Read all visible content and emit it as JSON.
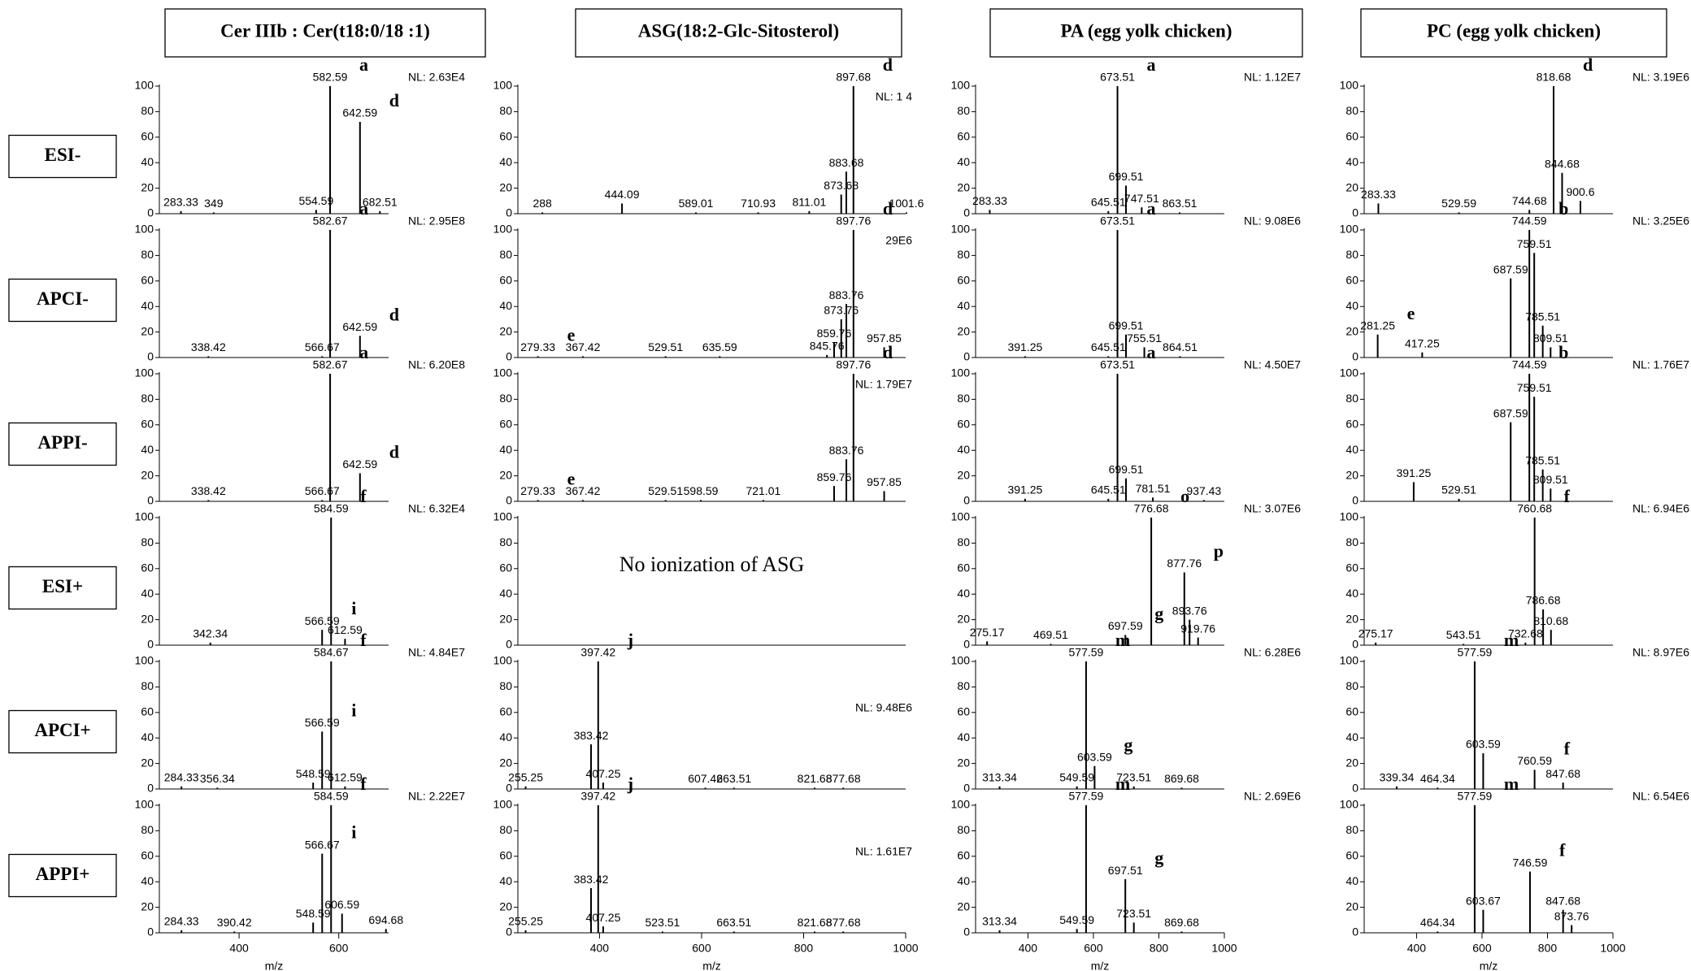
{
  "column_titles": [
    "Cer IIIb : Cer(t18:0/18 :1)",
    "ASG(18:2-Glc-Sitosterol)",
    "PA (egg yolk chicken)",
    "PC (egg yolk chicken)"
  ],
  "row_titles": [
    "ESI-",
    "APCI-",
    "APPI-",
    "ESI+",
    "APCI+",
    "APPI+"
  ],
  "chart_data": [
    {
      "type": "stem",
      "nl": "NL: 2.63E4",
      "color": "#000",
      "xlim": [
        240,
        700
      ],
      "ylim": [
        0,
        100
      ],
      "yticks": [
        0,
        20,
        40,
        60,
        80,
        100
      ],
      "x": [
        283.33,
        349.0,
        554.59,
        582.59,
        642.59,
        682.51
      ],
      "values": [
        2,
        1,
        3,
        100,
        72,
        2
      ],
      "peak_letters": [
        null,
        null,
        null,
        "a",
        "d",
        null
      ]
    },
    {
      "type": "stem",
      "nl": "NL: 1      4",
      "color": "#000",
      "xlim": [
        240,
        1000
      ],
      "ylim": [
        0,
        100
      ],
      "yticks": [
        0,
        20,
        40,
        60,
        80,
        100
      ],
      "x": [
        288.0,
        444.09,
        589.01,
        710.93,
        811.01,
        873.68,
        883.68,
        897.68,
        1001.6
      ],
      "values": [
        1,
        8,
        1,
        1,
        2,
        15,
        33,
        100,
        1
      ],
      "peak_letters": [
        null,
        null,
        null,
        null,
        null,
        null,
        null,
        "d",
        null
      ]
    },
    {
      "type": "stem",
      "nl": "NL: 1.12E7",
      "color": "#000",
      "xlim": [
        240,
        1000
      ],
      "ylim": [
        0,
        100
      ],
      "yticks": [
        0,
        20,
        40,
        60,
        80,
        100
      ],
      "x": [
        283.33,
        645.51,
        673.51,
        699.51,
        747.51,
        863.51
      ],
      "values": [
        3,
        2,
        100,
        22,
        5,
        1
      ],
      "peak_letters": [
        null,
        null,
        "a",
        null,
        null,
        null
      ]
    },
    {
      "type": "stem",
      "nl": "NL: 3.19E6",
      "color": "#000",
      "xlim": [
        240,
        1000
      ],
      "ylim": [
        0,
        100
      ],
      "yticks": [
        0,
        20,
        40,
        60,
        80,
        100
      ],
      "x": [
        283.33,
        529.59,
        744.68,
        818.68,
        844.68,
        900.6
      ],
      "values": [
        8,
        1,
        3,
        100,
        32,
        10
      ],
      "peak_letters": [
        null,
        null,
        null,
        "d",
        null,
        null
      ]
    },
    {
      "type": "stem",
      "nl": "NL: 2.95E8",
      "color": "#000",
      "xlim": [
        240,
        700
      ],
      "ylim": [
        0,
        100
      ],
      "yticks": [
        0,
        20,
        40,
        60,
        80,
        100
      ],
      "x": [
        338.42,
        566.67,
        582.67,
        642.59
      ],
      "values": [
        1,
        1,
        100,
        17
      ],
      "peak_letters": [
        null,
        null,
        "a",
        "d"
      ]
    },
    {
      "type": "stem",
      "nl": "29E6",
      "color": "#000",
      "xlim": [
        240,
        1000
      ],
      "ylim": [
        0,
        100
      ],
      "yticks": [
        0,
        20,
        40,
        60,
        80,
        100
      ],
      "x": [
        279.33,
        367.42,
        529.51,
        635.59,
        845.76,
        859.76,
        873.76,
        883.76,
        897.76,
        957.85
      ],
      "values": [
        1,
        1,
        1,
        1,
        2,
        12,
        30,
        42,
        100,
        8
      ],
      "peak_letters": [
        "e",
        null,
        null,
        null,
        null,
        null,
        null,
        null,
        "d",
        null
      ]
    },
    {
      "type": "stem",
      "nl": "NL: 9.08E6",
      "color": "#000",
      "xlim": [
        240,
        1000
      ],
      "ylim": [
        0,
        100
      ],
      "yticks": [
        0,
        20,
        40,
        60,
        80,
        100
      ],
      "x": [
        391.25,
        645.51,
        673.51,
        699.51,
        755.51,
        864.51
      ],
      "values": [
        1,
        1,
        100,
        18,
        8,
        1
      ],
      "peak_letters": [
        null,
        null,
        "a",
        null,
        null,
        null
      ]
    },
    {
      "type": "stem",
      "nl": "NL: 3.25E6",
      "color": "#000",
      "xlim": [
        240,
        1000
      ],
      "ylim": [
        0,
        100
      ],
      "yticks": [
        0,
        20,
        40,
        60,
        80,
        100
      ],
      "x": [
        281.25,
        417.25,
        687.59,
        744.59,
        759.51,
        785.51,
        809.51
      ],
      "values": [
        18,
        4,
        62,
        100,
        82,
        25,
        8
      ],
      "peak_letters": [
        "e",
        null,
        null,
        "b",
        null,
        null,
        null
      ]
    },
    {
      "type": "stem",
      "nl": "NL: 6.20E8",
      "color": "#000",
      "xlim": [
        240,
        700
      ],
      "ylim": [
        0,
        100
      ],
      "yticks": [
        0,
        20,
        40,
        60,
        80,
        100
      ],
      "x": [
        338.42,
        566.67,
        582.67,
        642.59
      ],
      "values": [
        1,
        1,
        100,
        22
      ],
      "peak_letters": [
        null,
        null,
        "a",
        "d"
      ]
    },
    {
      "type": "stem",
      "nl": "NL: 1.79E7",
      "color": "#000",
      "xlim": [
        240,
        1000
      ],
      "ylim": [
        0,
        100
      ],
      "yticks": [
        0,
        20,
        40,
        60,
        80,
        100
      ],
      "x": [
        279.33,
        367.42,
        529.51,
        598.59,
        721.01,
        859.76,
        883.76,
        897.76,
        957.85
      ],
      "values": [
        1,
        1,
        1,
        1,
        1,
        12,
        33,
        100,
        8
      ],
      "peak_letters": [
        "e",
        null,
        null,
        null,
        null,
        null,
        null,
        "d",
        null
      ]
    },
    {
      "type": "stem",
      "nl": "NL: 4.50E7",
      "color": "#000",
      "xlim": [
        240,
        1000
      ],
      "ylim": [
        0,
        100
      ],
      "yticks": [
        0,
        20,
        40,
        60,
        80,
        100
      ],
      "x": [
        391.25,
        645.51,
        673.51,
        699.51,
        781.51,
        937.43
      ],
      "values": [
        2,
        2,
        100,
        18,
        3,
        1
      ],
      "peak_letters": [
        null,
        null,
        "a",
        null,
        null,
        null
      ]
    },
    {
      "type": "stem",
      "nl": "NL: 1.76E7",
      "color": "#000",
      "xlim": [
        240,
        1000
      ],
      "ylim": [
        0,
        100
      ],
      "yticks": [
        0,
        20,
        40,
        60,
        80,
        100
      ],
      "x": [
        391.25,
        529.51,
        687.59,
        744.59,
        759.51,
        785.51,
        809.51
      ],
      "values": [
        15,
        2,
        62,
        100,
        82,
        25,
        10
      ],
      "peak_letters": [
        null,
        null,
        null,
        "b",
        null,
        null,
        null
      ]
    },
    {
      "type": "stem",
      "nl": "NL: 6.32E4",
      "color": "#000",
      "xlim": [
        240,
        700
      ],
      "ylim": [
        0,
        100
      ],
      "yticks": [
        0,
        20,
        40,
        60,
        80,
        100
      ],
      "x": [
        342.34,
        566.59,
        584.59,
        612.59
      ],
      "values": [
        2,
        12,
        100,
        5
      ],
      "peak_letters": [
        null,
        "i",
        "f",
        null
      ]
    },
    {
      "type": "stem",
      "note": "No ionization of ASG",
      "color": "#000",
      "xlim": [
        240,
        1000
      ],
      "ylim": [
        0,
        100
      ],
      "yticks": [
        0,
        20,
        40,
        60,
        80,
        100
      ],
      "x": [],
      "values": [],
      "peak_letters": []
    },
    {
      "type": "stem",
      "nl": "NL: 3.07E6",
      "color": "#000",
      "xlim": [
        240,
        1000
      ],
      "ylim": [
        0,
        100
      ],
      "yticks": [
        0,
        20,
        40,
        60,
        80,
        100
      ],
      "x": [
        275.17,
        469.51,
        697.59,
        776.68,
        877.76,
        893.76,
        919.76
      ],
      "values": [
        3,
        1,
        8,
        100,
        57,
        20,
        6
      ],
      "peak_letters": [
        null,
        null,
        "g",
        "o",
        "p",
        null,
        null
      ]
    },
    {
      "type": "stem",
      "nl": "NL: 6.94E6",
      "color": "#000",
      "xlim": [
        240,
        1000
      ],
      "ylim": [
        0,
        100
      ],
      "yticks": [
        0,
        20,
        40,
        60,
        80,
        100
      ],
      "x": [
        275.17,
        543.51,
        732.68,
        760.68,
        786.68,
        810.68
      ],
      "values": [
        2,
        1,
        2,
        100,
        28,
        12
      ],
      "peak_letters": [
        null,
        null,
        null,
        "f",
        null,
        null
      ]
    },
    {
      "type": "stem",
      "nl": "NL: 4.84E7",
      "color": "#000",
      "xlim": [
        240,
        700
      ],
      "ylim": [
        0,
        100
      ],
      "yticks": [
        0,
        20,
        40,
        60,
        80,
        100
      ],
      "x": [
        284.33,
        356.34,
        548.59,
        566.59,
        584.67,
        612.59
      ],
      "values": [
        2,
        1,
        5,
        45,
        100,
        2
      ],
      "peak_letters": [
        null,
        null,
        null,
        "i",
        "f",
        null
      ]
    },
    {
      "type": "stem",
      "nl": "NL: 9.48E6",
      "color": "#000",
      "xlim": [
        240,
        1000
      ],
      "ylim": [
        0,
        100
      ],
      "yticks": [
        0,
        20,
        40,
        60,
        80,
        100
      ],
      "x": [
        255.25,
        383.42,
        397.42,
        407.25,
        607.42,
        663.51,
        821.68,
        877.68
      ],
      "values": [
        2,
        35,
        100,
        5,
        1,
        1,
        1,
        1
      ],
      "peak_letters": [
        null,
        null,
        "j",
        null,
        null,
        null,
        null,
        null
      ]
    },
    {
      "type": "stem",
      "nl": "NL: 6.28E6",
      "color": "#000",
      "xlim": [
        240,
        1000
      ],
      "ylim": [
        0,
        100
      ],
      "yticks": [
        0,
        20,
        40,
        60,
        80,
        100
      ],
      "x": [
        313.34,
        549.59,
        577.59,
        603.59,
        723.51,
        869.68
      ],
      "values": [
        2,
        2,
        100,
        18,
        2,
        1
      ],
      "peak_letters": [
        null,
        null,
        "m",
        "g",
        null,
        null
      ]
    },
    {
      "type": "stem",
      "nl": "NL: 8.97E6",
      "color": "#000",
      "xlim": [
        240,
        1000
      ],
      "ylim": [
        0,
        100
      ],
      "yticks": [
        0,
        20,
        40,
        60,
        80,
        100
      ],
      "x": [
        339.34,
        464.34,
        577.59,
        603.59,
        760.59,
        847.68
      ],
      "values": [
        2,
        1,
        100,
        28,
        15,
        5
      ],
      "peak_letters": [
        null,
        null,
        "m",
        null,
        "f",
        null
      ]
    },
    {
      "type": "stem",
      "nl": "NL: 2.22E7",
      "color": "#000",
      "xlim": [
        240,
        700
      ],
      "ylim": [
        0,
        100
      ],
      "yticks": [
        0,
        20,
        40,
        60,
        80,
        100
      ],
      "xticks": [
        400,
        600
      ],
      "xlabel": "m/z",
      "x": [
        284.33,
        390.42,
        548.59,
        566.67,
        584.59,
        606.59,
        694.68
      ],
      "values": [
        2,
        1,
        8,
        62,
        100,
        15,
        3
      ],
      "peak_letters": [
        null,
        null,
        null,
        "i",
        "f",
        null,
        null
      ]
    },
    {
      "type": "stem",
      "nl": "NL: 1.61E7",
      "color": "#000",
      "xlim": [
        240,
        1000
      ],
      "ylim": [
        0,
        100
      ],
      "yticks": [
        0,
        20,
        40,
        60,
        80,
        100
      ],
      "xticks": [
        400,
        600,
        800,
        1000
      ],
      "xlabel": "m/z",
      "x": [
        255.25,
        383.42,
        397.42,
        407.25,
        523.51,
        663.51,
        821.68,
        877.68
      ],
      "values": [
        2,
        35,
        100,
        5,
        1,
        1,
        1,
        1
      ],
      "peak_letters": [
        null,
        null,
        "j",
        null,
        null,
        null,
        null,
        null
      ]
    },
    {
      "type": "stem",
      "nl": "NL: 2.69E6",
      "color": "#000",
      "xlim": [
        240,
        1000
      ],
      "ylim": [
        0,
        100
      ],
      "yticks": [
        0,
        20,
        40,
        60,
        80,
        100
      ],
      "xticks": [
        400,
        600,
        800,
        1000
      ],
      "xlabel": "m/z",
      "x": [
        313.34,
        549.59,
        577.59,
        697.51,
        723.51,
        869.68
      ],
      "values": [
        2,
        3,
        100,
        42,
        8,
        1
      ],
      "peak_letters": [
        null,
        null,
        "m",
        "g",
        null,
        null
      ]
    },
    {
      "type": "stem",
      "nl": "NL: 6.54E6",
      "color": "#000",
      "xlim": [
        240,
        1000
      ],
      "ylim": [
        0,
        100
      ],
      "yticks": [
        0,
        20,
        40,
        60,
        80,
        100
      ],
      "xticks": [
        400,
        600,
        800,
        1000
      ],
      "xlabel": "m/z",
      "x": [
        464.34,
        577.59,
        603.67,
        746.59,
        847.68,
        873.76
      ],
      "values": [
        1,
        100,
        18,
        48,
        18,
        6
      ],
      "peak_letters": [
        null,
        "m",
        null,
        "f",
        null,
        null
      ]
    }
  ]
}
